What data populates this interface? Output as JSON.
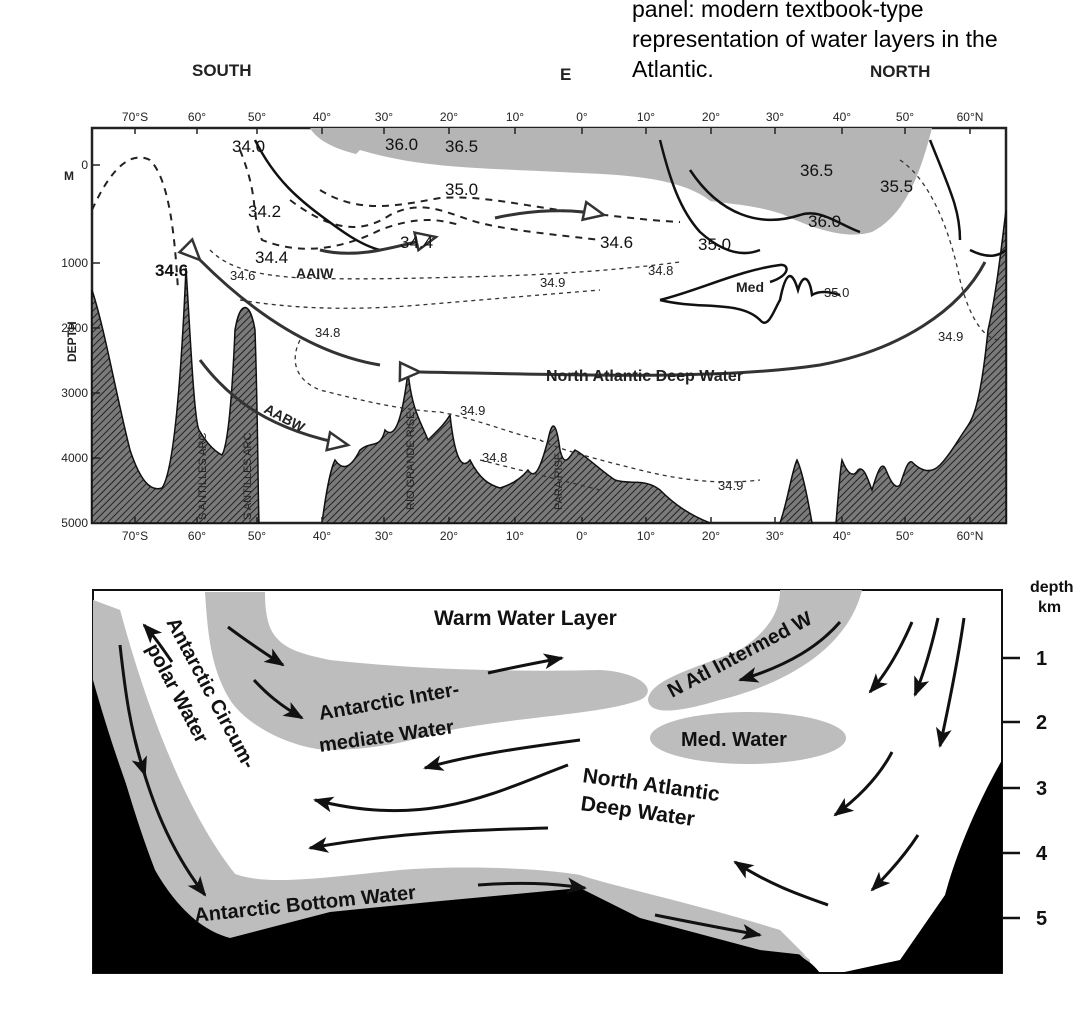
{
  "caption": "panel: modern textbook-type representation of water layers in the Atlantic.",
  "top_panel": {
    "direction_left": "SOUTH",
    "direction_mid": "E",
    "direction_right": "NORTH",
    "lat_ticks_top": [
      "70°S",
      "60°",
      "50°",
      "40°",
      "30°",
      "20°",
      "10°",
      "0°",
      "10°",
      "20°",
      "30°",
      "40°",
      "50°",
      "60°N"
    ],
    "lat_ticks_bottom": [
      "70°S",
      "60°",
      "50°",
      "40°",
      "30°",
      "20°",
      "10°",
      "0°",
      "10°",
      "20°",
      "30°",
      "40°",
      "50°",
      "60°N"
    ],
    "depth_label": "DEPTH",
    "depth_ticks": [
      "0",
      "1000",
      "2000",
      "3000",
      "4000",
      "5000"
    ],
    "depth_unit": "M",
    "contours": {
      "c340": "34.0",
      "c342": "34.2",
      "c344": "34.4",
      "c346": "34.6",
      "c344b": "34.4",
      "c350": "35.0",
      "c360": "36.0",
      "c365": "36.5",
      "c365r": "36.5",
      "c355r": "35.5",
      "c360r": "36.0",
      "c350r": "35.0",
      "c346r": "34.6",
      "c348r": "34.8",
      "c349": "34.9",
      "c346m": "34.6",
      "c348": "34.8",
      "c349b": "34.9",
      "c348b": "34.8",
      "c349c": "34.9",
      "c349e": "34.9",
      "c350med": "35.0"
    },
    "water_labels": {
      "aaiw": "AAIW",
      "med": "Med",
      "nadw": "North Atlantic Deep Water",
      "aabw": "AABW"
    },
    "features": {
      "s_antilles": "S ANTILLES ARC",
      "s_antilles2": "S ANTILLES ARC",
      "rio_grande": "RIO GRANDE RISE",
      "para": "PARA RISE"
    }
  },
  "bottom_panel": {
    "depth_title_1": "depth",
    "depth_title_2": "km",
    "depth_ticks": [
      "1",
      "2",
      "3",
      "4",
      "5"
    ],
    "labels": {
      "warm": "Warm Water Layer",
      "aiw_1": "Antarctic Inter-",
      "aiw_2": "mediate Water",
      "natl_iw": "N Atl Intermed W",
      "acw_1": "Antarctic Circum-",
      "acw_2": "polar Water",
      "med": "Med. Water",
      "nadw_1": "North Atlantic",
      "nadw_2": "Deep Water",
      "aabw": "Antarctic Bottom Water"
    }
  },
  "colors": {
    "shade_top": "#b3b3b3",
    "shade_bottom": "#bdbdbd",
    "floor": "#000000",
    "ink": "#1a1a1a"
  }
}
